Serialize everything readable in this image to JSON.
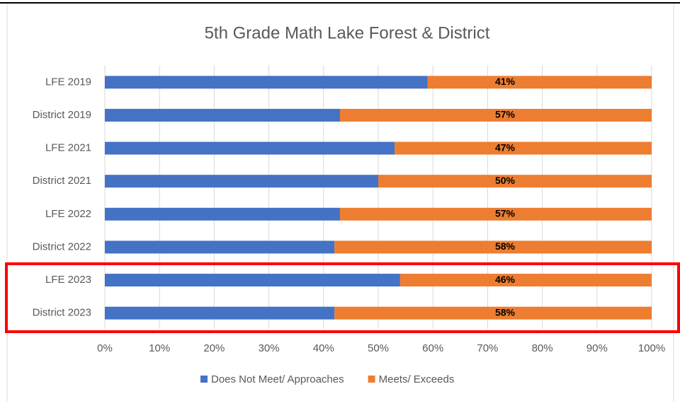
{
  "chart_data": {
    "type": "stacked_bar_horizontal",
    "title": "5th Grade Math Lake Forest & District",
    "categories": [
      "LFE 2019",
      "District 2019",
      "LFE 2021",
      "District 2021",
      "LFE 2022",
      "District 2022",
      "LFE 2023",
      "District 2023"
    ],
    "series": [
      {
        "name": "Does Not Meet/ Approaches",
        "color": "#4472c4",
        "values": [
          59,
          43,
          53,
          50,
          43,
          42,
          54,
          42
        ]
      },
      {
        "name": "Meets/ Exceeds",
        "color": "#ed7d31",
        "values": [
          41,
          57,
          47,
          50,
          57,
          58,
          46,
          58
        ],
        "value_labels": [
          "41%",
          "57%",
          "47%",
          "50%",
          "57%",
          "58%",
          "46%",
          "58%"
        ]
      }
    ],
    "xlim": [
      0,
      100
    ],
    "xticks": [
      {
        "value": 0,
        "label": "0%"
      },
      {
        "value": 10,
        "label": "10%"
      },
      {
        "value": 20,
        "label": "20%"
      },
      {
        "value": 30,
        "label": "30%"
      },
      {
        "value": 40,
        "label": "40%"
      },
      {
        "value": 50,
        "label": "50%"
      },
      {
        "value": 60,
        "label": "60%"
      },
      {
        "value": 70,
        "label": "70%"
      },
      {
        "value": 80,
        "label": "80%"
      },
      {
        "value": 90,
        "label": "90%"
      },
      {
        "value": 100,
        "label": "100%"
      }
    ],
    "grid": true,
    "legend": "bottom"
  }
}
